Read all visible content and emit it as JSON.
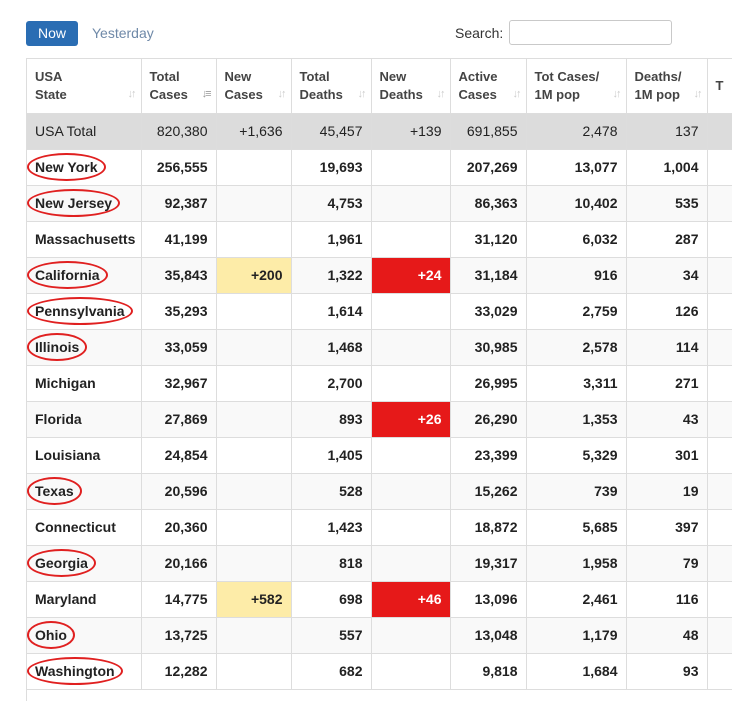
{
  "toolbar": {
    "now_label": "Now",
    "yesterday_label": "Yesterday",
    "search_label": "Search:",
    "search_value": ""
  },
  "columns": [
    {
      "line1": "USA",
      "line2": "State"
    },
    {
      "line1": "Total",
      "line2": "Cases"
    },
    {
      "line1": "New",
      "line2": "Cases"
    },
    {
      "line1": "Total",
      "line2": "Deaths"
    },
    {
      "line1": "New",
      "line2": "Deaths"
    },
    {
      "line1": "Active",
      "line2": "Cases"
    },
    {
      "line1": "Tot Cases/",
      "line2": "1M pop"
    },
    {
      "line1": "Deaths/",
      "line2": "1M pop"
    },
    {
      "line1": "T",
      "line2": ""
    }
  ],
  "total_row": {
    "state": "USA Total",
    "total_cases": "820,380",
    "new_cases": "+1,636",
    "total_deaths": "45,457",
    "new_deaths": "+139",
    "active_cases": "691,855",
    "cases_per_1m": "2,478",
    "deaths_per_1m": "137"
  },
  "rows": [
    {
      "state": "New York",
      "total_cases": "256,555",
      "new_cases": "",
      "total_deaths": "19,693",
      "new_deaths": "",
      "active_cases": "207,269",
      "cases_per_1m": "13,077",
      "deaths_per_1m": "1,004"
    },
    {
      "state": "New Jersey",
      "total_cases": "92,387",
      "new_cases": "",
      "total_deaths": "4,753",
      "new_deaths": "",
      "active_cases": "86,363",
      "cases_per_1m": "10,402",
      "deaths_per_1m": "535"
    },
    {
      "state": "Massachusetts",
      "total_cases": "41,199",
      "new_cases": "",
      "total_deaths": "1,961",
      "new_deaths": "",
      "active_cases": "31,120",
      "cases_per_1m": "6,032",
      "deaths_per_1m": "287"
    },
    {
      "state": "California",
      "total_cases": "35,843",
      "new_cases": "+200",
      "total_deaths": "1,322",
      "new_deaths": "+24",
      "active_cases": "31,184",
      "cases_per_1m": "916",
      "deaths_per_1m": "34"
    },
    {
      "state": "Pennsylvania",
      "total_cases": "35,293",
      "new_cases": "",
      "total_deaths": "1,614",
      "new_deaths": "",
      "active_cases": "33,029",
      "cases_per_1m": "2,759",
      "deaths_per_1m": "126"
    },
    {
      "state": "Illinois",
      "total_cases": "33,059",
      "new_cases": "",
      "total_deaths": "1,468",
      "new_deaths": "",
      "active_cases": "30,985",
      "cases_per_1m": "2,578",
      "deaths_per_1m": "114"
    },
    {
      "state": "Michigan",
      "total_cases": "32,967",
      "new_cases": "",
      "total_deaths": "2,700",
      "new_deaths": "",
      "active_cases": "26,995",
      "cases_per_1m": "3,311",
      "deaths_per_1m": "271"
    },
    {
      "state": "Florida",
      "total_cases": "27,869",
      "new_cases": "",
      "total_deaths": "893",
      "new_deaths": "+26",
      "active_cases": "26,290",
      "cases_per_1m": "1,353",
      "deaths_per_1m": "43"
    },
    {
      "state": "Louisiana",
      "total_cases": "24,854",
      "new_cases": "",
      "total_deaths": "1,405",
      "new_deaths": "",
      "active_cases": "23,399",
      "cases_per_1m": "5,329",
      "deaths_per_1m": "301"
    },
    {
      "state": "Texas",
      "total_cases": "20,596",
      "new_cases": "",
      "total_deaths": "528",
      "new_deaths": "",
      "active_cases": "15,262",
      "cases_per_1m": "739",
      "deaths_per_1m": "19"
    },
    {
      "state": "Connecticut",
      "total_cases": "20,360",
      "new_cases": "",
      "total_deaths": "1,423",
      "new_deaths": "",
      "active_cases": "18,872",
      "cases_per_1m": "5,685",
      "deaths_per_1m": "397"
    },
    {
      "state": "Georgia",
      "total_cases": "20,166",
      "new_cases": "",
      "total_deaths": "818",
      "new_deaths": "",
      "active_cases": "19,317",
      "cases_per_1m": "1,958",
      "deaths_per_1m": "79"
    },
    {
      "state": "Maryland",
      "total_cases": "14,775",
      "new_cases": "+582",
      "total_deaths": "698",
      "new_deaths": "+46",
      "active_cases": "13,096",
      "cases_per_1m": "2,461",
      "deaths_per_1m": "116"
    },
    {
      "state": "Ohio",
      "total_cases": "13,725",
      "new_cases": "",
      "total_deaths": "557",
      "new_deaths": "",
      "active_cases": "13,048",
      "cases_per_1m": "1,179",
      "deaths_per_1m": "48"
    },
    {
      "state": "Washington",
      "total_cases": "12,282",
      "new_cases": "",
      "total_deaths": "682",
      "new_deaths": "",
      "active_cases": "9,818",
      "cases_per_1m": "1,684",
      "deaths_per_1m": "93"
    }
  ],
  "circled_states": [
    "New York",
    "New Jersey",
    "California",
    "Pennsylvania",
    "Illinois",
    "Texas",
    "Georgia",
    "Ohio",
    "Washington"
  ],
  "colors": {
    "primary_button": "#2a6db3",
    "new_cases_highlight": "#fdeca8",
    "new_deaths_highlight": "#e61919",
    "circle_annotation": "#e02020",
    "total_row_bg": "#dcdcdc"
  }
}
